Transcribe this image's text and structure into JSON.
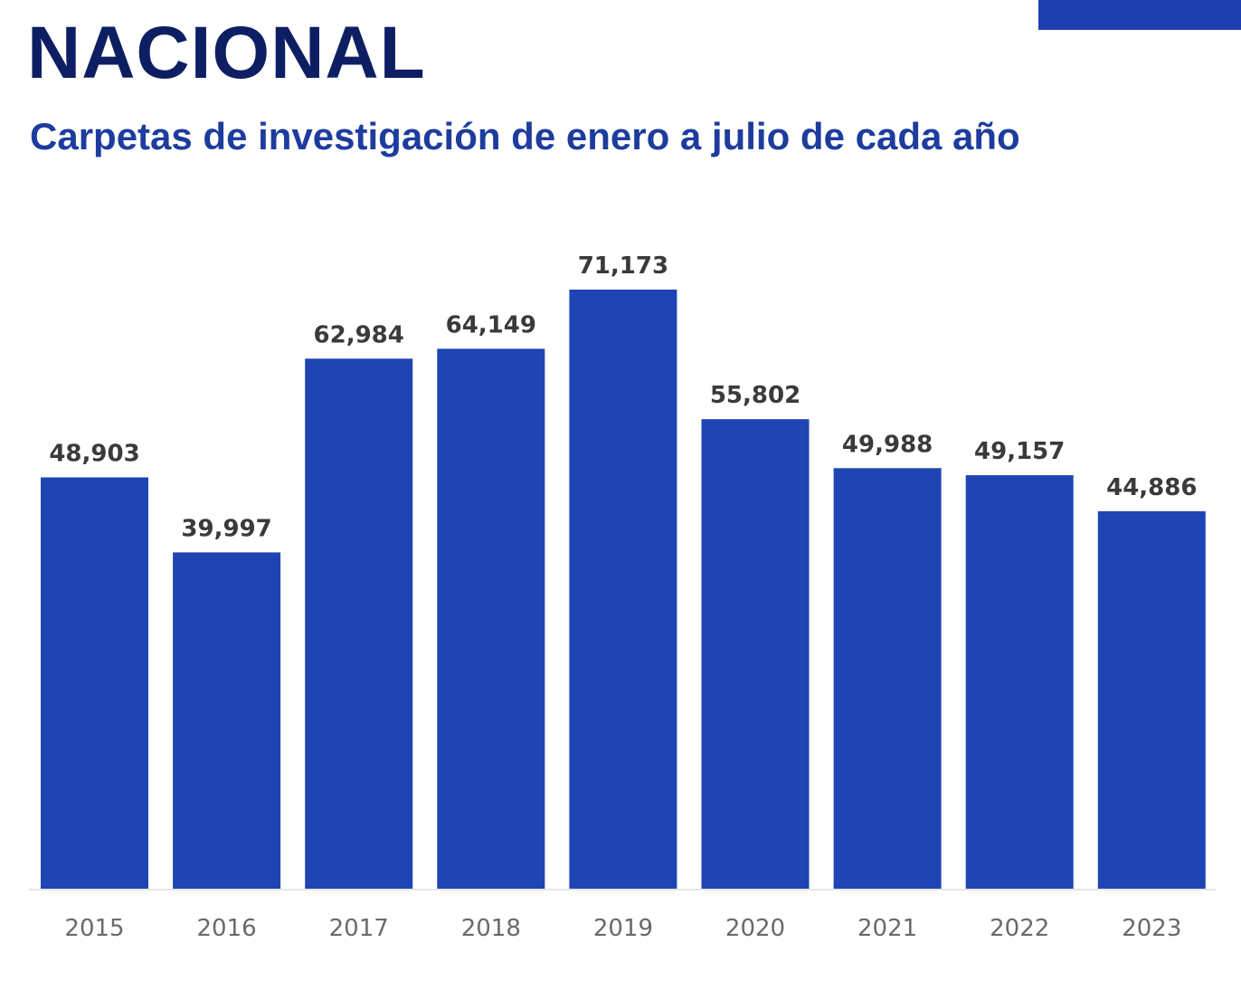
{
  "header": {
    "accent_color": "#1f3fb0"
  },
  "chart_data": {
    "type": "bar",
    "title": "NACIONAL",
    "subtitle": "Carpetas de investigación de enero a julio de cada año",
    "categories": [
      "2015",
      "2016",
      "2017",
      "2018",
      "2019",
      "2020",
      "2021",
      "2022",
      "2023"
    ],
    "values": [
      48903,
      39997,
      62984,
      64149,
      71173,
      55802,
      49988,
      49157,
      44886
    ],
    "value_labels": [
      "48,903",
      "39,997",
      "62,984",
      "64,149",
      "71,173",
      "55,802",
      "49,988",
      "49,157",
      "44,886"
    ],
    "xlabel": "",
    "ylabel": "",
    "ylim": [
      0,
      71173
    ],
    "grid": false,
    "bar_color": "#1f44b3"
  }
}
